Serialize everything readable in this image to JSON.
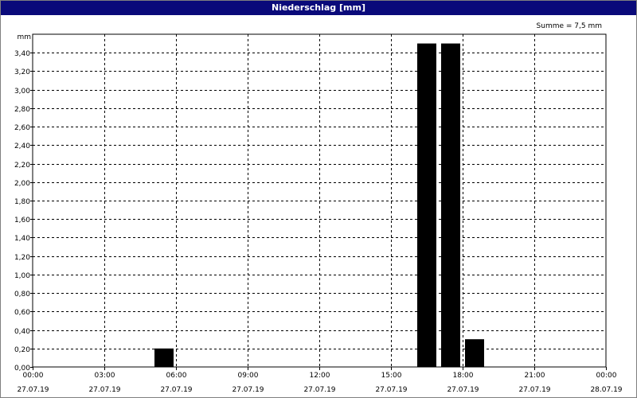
{
  "window": {
    "title": "Niederschlag [mm]"
  },
  "chart_data": {
    "type": "bar",
    "title": "Niederschlag [mm]",
    "ylabel": "mm",
    "summary": "Summe = 7,5 mm",
    "ylim": [
      0,
      3.6
    ],
    "yticks": [
      0,
      0.2,
      0.4,
      0.6,
      0.8,
      1.0,
      1.2,
      1.4,
      1.6,
      1.8,
      2.0,
      2.2,
      2.4,
      2.6,
      2.8,
      3.0,
      3.2,
      3.4
    ],
    "ytick_labels": [
      "0,00",
      "0,20",
      "0,40",
      "0,60",
      "0,80",
      "1,00",
      "1,20",
      "1,40",
      "1,60",
      "1,80",
      "2,00",
      "2,20",
      "2,40",
      "2,60",
      "2,80",
      "3,00",
      "3,20",
      "3,40"
    ],
    "xlim_hours": [
      0,
      24
    ],
    "xticks": [
      {
        "hours": 0,
        "time": "00:00",
        "date": "27.07.19"
      },
      {
        "hours": 3,
        "time": "03:00",
        "date": "27.07.19"
      },
      {
        "hours": 6,
        "time": "06:00",
        "date": "27.07.19"
      },
      {
        "hours": 9,
        "time": "09:00",
        "date": "27.07.19"
      },
      {
        "hours": 12,
        "time": "12:00",
        "date": "27.07.19"
      },
      {
        "hours": 15,
        "time": "15:00",
        "date": "27.07.19"
      },
      {
        "hours": 18,
        "time": "18:00",
        "date": "27.07.19"
      },
      {
        "hours": 21,
        "time": "21:00",
        "date": "27.07.19"
      },
      {
        "hours": 24,
        "time": "00:00",
        "date": "28.07.19"
      }
    ],
    "bars": [
      {
        "start": "05:00",
        "end": "06:00",
        "value": 0.2
      },
      {
        "start": "16:00",
        "end": "17:00",
        "value": 3.5
      },
      {
        "start": "17:00",
        "end": "18:00",
        "value": 3.5
      },
      {
        "start": "18:00",
        "end": "19:00",
        "value": 0.3
      }
    ],
    "bar_color": "#000000",
    "grid": true,
    "grid_style": "dashed"
  }
}
